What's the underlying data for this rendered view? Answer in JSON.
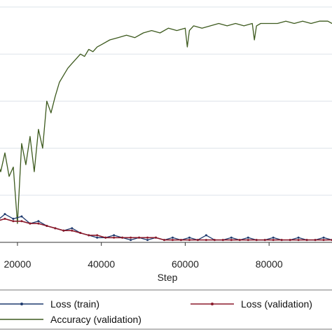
{
  "chart_data": {
    "type": "line",
    "title": "",
    "xlabel": "Step",
    "ylabel": "",
    "xlim": [
      15000,
      95000
    ],
    "ylim": [
      0,
      1.0
    ],
    "x_ticks": [
      20000,
      40000,
      60000,
      80000
    ],
    "x_tick_labels": [
      "20000",
      "40000",
      "60000",
      "80000"
    ],
    "y_gridlines": [
      0.2,
      0.4,
      0.6,
      0.8,
      1.0
    ],
    "grid": true,
    "legend_position": "bottom",
    "series": [
      {
        "name": "Loss (train)",
        "color": "#1f3a6e",
        "marker": "dot",
        "x": [
          15000,
          17000,
          19000,
          21000,
          23000,
          25000,
          27000,
          29000,
          31000,
          33000,
          35000,
          37000,
          39000,
          41000,
          43000,
          45000,
          47000,
          49000,
          51000,
          53000,
          55000,
          57000,
          59000,
          61000,
          63000,
          65000,
          67000,
          69000,
          71000,
          73000,
          75000,
          77000,
          79000,
          81000,
          83000,
          85000,
          87000,
          89000,
          91000,
          93000,
          95000
        ],
        "values": [
          0.09,
          0.12,
          0.1,
          0.11,
          0.08,
          0.09,
          0.07,
          0.06,
          0.05,
          0.06,
          0.04,
          0.03,
          0.02,
          0.02,
          0.03,
          0.02,
          0.01,
          0.02,
          0.01,
          0.02,
          0.01,
          0.02,
          0.01,
          0.02,
          0.01,
          0.03,
          0.01,
          0.01,
          0.02,
          0.01,
          0.02,
          0.01,
          0.01,
          0.02,
          0.01,
          0.01,
          0.02,
          0.01,
          0.01,
          0.02,
          0.01
        ]
      },
      {
        "name": "Loss (validation)",
        "color": "#8b1a2b",
        "marker": "dot",
        "x": [
          15000,
          17000,
          19000,
          21000,
          23000,
          25000,
          27000,
          29000,
          31000,
          33000,
          35000,
          37000,
          39000,
          41000,
          43000,
          45000,
          47000,
          49000,
          51000,
          53000,
          55000,
          57000,
          59000,
          61000,
          63000,
          65000,
          67000,
          69000,
          71000,
          73000,
          75000,
          77000,
          79000,
          81000,
          83000,
          85000,
          87000,
          89000,
          91000,
          93000,
          95000
        ],
        "values": [
          0.09,
          0.1,
          0.09,
          0.09,
          0.08,
          0.08,
          0.07,
          0.06,
          0.05,
          0.05,
          0.04,
          0.03,
          0.03,
          0.02,
          0.02,
          0.02,
          0.02,
          0.02,
          0.02,
          0.02,
          0.01,
          0.01,
          0.01,
          0.01,
          0.01,
          0.01,
          0.01,
          0.01,
          0.01,
          0.01,
          0.01,
          0.01,
          0.01,
          0.01,
          0.01,
          0.01,
          0.01,
          0.01,
          0.01,
          0.01,
          0.01
        ]
      },
      {
        "name": "Accuracy (validation)",
        "color": "#3d5a1e",
        "marker": "none",
        "x": [
          15000,
          16000,
          17000,
          18000,
          19000,
          20000,
          21000,
          22000,
          23000,
          24000,
          25000,
          26000,
          27000,
          28000,
          29000,
          30000,
          31000,
          32000,
          33000,
          34000,
          35000,
          36000,
          37000,
          38000,
          39000,
          40000,
          42000,
          44000,
          46000,
          48000,
          50000,
          52000,
          54000,
          56000,
          58000,
          60000,
          60500,
          61000,
          62000,
          64000,
          66000,
          68000,
          70000,
          72000,
          74000,
          76000,
          76500,
          77000,
          78000,
          80000,
          82000,
          84000,
          86000,
          88000,
          90000,
          92000,
          94000,
          95000
        ],
        "values": [
          0.35,
          0.3,
          0.38,
          0.28,
          0.32,
          0.08,
          0.42,
          0.33,
          0.45,
          0.3,
          0.48,
          0.4,
          0.6,
          0.55,
          0.62,
          0.68,
          0.71,
          0.74,
          0.76,
          0.78,
          0.8,
          0.79,
          0.82,
          0.81,
          0.83,
          0.84,
          0.86,
          0.87,
          0.88,
          0.87,
          0.89,
          0.9,
          0.89,
          0.91,
          0.9,
          0.91,
          0.83,
          0.9,
          0.92,
          0.91,
          0.92,
          0.93,
          0.92,
          0.93,
          0.92,
          0.93,
          0.86,
          0.92,
          0.93,
          0.93,
          0.93,
          0.94,
          0.93,
          0.94,
          0.93,
          0.94,
          0.94,
          0.93
        ]
      }
    ]
  }
}
